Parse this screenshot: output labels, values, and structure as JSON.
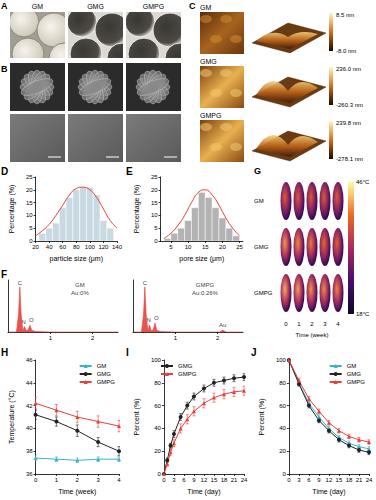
{
  "chart_data": [
    {
      "title": "D",
      "type": "histogram",
      "x_label": "particle size (μm)",
      "y_label": "Percentage (%)",
      "bins": [
        25,
        35,
        45,
        55,
        65,
        75,
        85,
        95,
        105,
        115,
        125,
        135
      ],
      "counts": [
        3,
        5,
        7,
        13,
        17,
        20,
        21,
        21,
        18,
        8,
        5
      ],
      "color": "#c9d9e2",
      "fit": {
        "x": [
          20,
          30,
          40,
          50,
          60,
          70,
          80,
          90,
          100,
          110,
          120,
          130,
          140
        ],
        "values": [
          2,
          4,
          6.5,
          10,
          14,
          18,
          20.5,
          21,
          20,
          17,
          12.5,
          8,
          5
        ],
        "color": "#e8403a"
      },
      "xlim": [
        20,
        140
      ],
      "xticks": [
        20,
        40,
        60,
        80,
        100,
        120,
        140
      ],
      "ylim": [
        0,
        25
      ],
      "yticks": [
        0,
        5,
        10,
        15,
        20,
        25
      ]
    },
    {
      "title": "E",
      "type": "histogram",
      "x_label": "pore size (μm)",
      "y_label": "Percentage (%)",
      "bins": [
        3,
        5,
        7,
        9,
        11,
        13,
        15,
        17,
        19,
        21,
        23,
        25
      ],
      "counts": [
        1,
        3,
        5,
        8,
        13,
        19,
        17,
        13,
        9,
        5,
        2
      ],
      "color": "#b3b3b3",
      "fit": {
        "x": [
          3,
          5,
          7,
          9,
          11,
          13,
          15,
          17,
          19,
          21,
          23,
          25
        ],
        "values": [
          1,
          3,
          6,
          10,
          15,
          19,
          20,
          18,
          14,
          9,
          5,
          2
        ],
        "color": "#e8403a"
      },
      "xlim": [
        2,
        26
      ],
      "xticks": [
        5,
        10,
        15,
        20,
        25
      ],
      "ylim": [
        0,
        25
      ],
      "yticks": [
        0,
        5,
        10,
        15,
        20,
        25
      ]
    },
    {
      "title": "F",
      "type": "spectrum",
      "tick_labels": "x",
      "color": "#e8403a",
      "x": [
        0,
        0.2,
        0.25,
        0.28,
        0.31,
        0.35,
        0.39,
        0.43,
        0.48,
        0.52,
        0.56,
        0.65,
        1,
        1.5,
        2,
        2.6
      ],
      "values": [
        0,
        0,
        40,
        100,
        40,
        3,
        12,
        3,
        5,
        15,
        4,
        1,
        0,
        0,
        0,
        0
      ],
      "xlim": [
        0,
        2.6
      ],
      "xticks": [
        1,
        2
      ],
      "ylim": [
        0,
        115
      ],
      "annotations": [
        {
          "text": "C",
          "x": 0.28,
          "y": 100
        },
        {
          "text": "N",
          "x": 0.37,
          "y": 14
        },
        {
          "text": "O",
          "x": 0.55,
          "y": 17
        },
        {
          "text": "GM",
          "x": 1.7,
          "y": 95
        },
        {
          "text": "Au:0%",
          "x": 1.7,
          "y": 78
        }
      ]
    },
    {
      "type": "spectrum",
      "tick_labels": "x",
      "color": "#e8403a",
      "x": [
        0,
        0.2,
        0.25,
        0.28,
        0.31,
        0.35,
        0.39,
        0.43,
        0.48,
        0.52,
        0.56,
        0.65,
        1,
        1.5,
        2.05,
        2.12,
        2.2,
        2.6
      ],
      "values": [
        0,
        0,
        40,
        100,
        40,
        3,
        15,
        3,
        5,
        20,
        4,
        1,
        0,
        0,
        0,
        4,
        0,
        0
      ],
      "xlim": [
        0,
        2.6
      ],
      "xticks": [
        1,
        2
      ],
      "ylim": [
        0,
        115
      ],
      "annotations": [
        {
          "text": "C",
          "x": 0.28,
          "y": 100
        },
        {
          "text": "N",
          "x": 0.37,
          "y": 17
        },
        {
          "text": "O",
          "x": 0.55,
          "y": 22
        },
        {
          "text": "Au",
          "x": 2.12,
          "y": 6
        },
        {
          "text": "GMPG",
          "x": 1.7,
          "y": 95
        },
        {
          "text": "Au:0.26%",
          "x": 1.7,
          "y": 78
        }
      ]
    },
    {
      "title": "H",
      "type": "line",
      "x_label": "Time (week)",
      "y_label": "Temperature (°C)",
      "legend": "upper right",
      "x": [
        0,
        1,
        2,
        3,
        4
      ],
      "xlim": [
        0,
        4
      ],
      "xticks": [
        0,
        1,
        2,
        3,
        4
      ],
      "ylim": [
        36,
        46
      ],
      "yticks": [
        36,
        38,
        40,
        42,
        44,
        46
      ],
      "series": [
        {
          "name": "GM",
          "color": "#3bb3c3",
          "marker": "triangle",
          "values": [
            37.4,
            37.3,
            37.2,
            37.3,
            37.3
          ],
          "errors": [
            0.2,
            0.2,
            0.2,
            0.2,
            0.2
          ]
        },
        {
          "name": "GMG",
          "color": "#222222",
          "marker": "circle",
          "values": [
            41.2,
            40.6,
            39.8,
            38.8,
            38.0
          ],
          "errors": [
            0.4,
            0.4,
            0.5,
            0.4,
            0.4
          ]
        },
        {
          "name": "GMPG",
          "color": "#e8403a",
          "marker": "triangle",
          "values": [
            42.2,
            41.6,
            41.0,
            40.6,
            40.2
          ],
          "errors": [
            0.5,
            0.5,
            0.5,
            0.5,
            0.5
          ]
        }
      ]
    },
    {
      "title": "I",
      "type": "line",
      "x_label": "Time (day)",
      "y_label": "Percent (%)",
      "legend": "upper left",
      "x": [
        0,
        1,
        2,
        3,
        5,
        7,
        9,
        12,
        15,
        18,
        21,
        24
      ],
      "xlim": [
        0,
        24
      ],
      "xticks": [
        0,
        3,
        6,
        9,
        12,
        15,
        18,
        21,
        24
      ],
      "ylim": [
        0,
        100
      ],
      "yticks": [
        0,
        20,
        40,
        60,
        80,
        100
      ],
      "series": [
        {
          "name": "GMG",
          "color": "#222222",
          "marker": "circle",
          "values": [
            0,
            12,
            25,
            35,
            50,
            60,
            68,
            75,
            80,
            82,
            84,
            85
          ],
          "errors": [
            0,
            2,
            2,
            3,
            3,
            3,
            3,
            3,
            3,
            3,
            3,
            3
          ]
        },
        {
          "name": "GMPG",
          "color": "#e8403a",
          "marker": "triangle",
          "values": [
            0,
            9,
            19,
            27,
            40,
            48,
            55,
            62,
            67,
            70,
            72,
            73
          ],
          "errors": [
            0,
            2,
            3,
            3,
            4,
            4,
            4,
            4,
            4,
            4,
            4,
            4
          ]
        }
      ]
    },
    {
      "title": "J",
      "type": "line",
      "x_label": "Time (day)",
      "y_label": "Percent (%)",
      "legend": "upper right",
      "x": [
        0,
        3,
        6,
        9,
        12,
        15,
        18,
        21,
        24
      ],
      "xlim": [
        0,
        24
      ],
      "xticks": [
        0,
        3,
        6,
        9,
        12,
        15,
        18,
        21,
        24
      ],
      "ylim": [
        0,
        100
      ],
      "yticks": [
        0,
        20,
        40,
        60,
        80,
        100
      ],
      "series": [
        {
          "name": "GM",
          "color": "#3bb3c3",
          "marker": "triangle",
          "values": [
            100,
            80,
            62,
            50,
            40,
            32,
            27,
            24,
            22
          ],
          "errors": [
            2,
            2,
            2,
            2,
            2,
            2,
            2,
            2,
            2
          ]
        },
        {
          "name": "GMG",
          "color": "#222222",
          "marker": "circle",
          "values": [
            100,
            79,
            60,
            47,
            38,
            30,
            25,
            21,
            19
          ],
          "errors": [
            2,
            2,
            2,
            2,
            2,
            2,
            2,
            2,
            2
          ]
        },
        {
          "name": "GMPG",
          "color": "#e8403a",
          "marker": "triangle",
          "values": [
            100,
            82,
            66,
            55,
            45,
            38,
            33,
            30,
            28
          ],
          "errors": [
            2,
            2,
            2,
            2,
            2,
            2,
            2,
            2,
            2
          ]
        }
      ]
    }
  ],
  "panels": {
    "A": {
      "letter": "A",
      "labels": [
        "GM",
        "GMG",
        "GMPG"
      ]
    },
    "B": {
      "letter": "B"
    },
    "C": {
      "letter": "C",
      "labels": [
        "GM",
        "GMG",
        "GMPG"
      ],
      "scales": [
        {
          "max": "8.5 nm",
          "min": "-8.0 nm"
        },
        {
          "max": "236.0 nm",
          "min": "-260.3 nm"
        },
        {
          "max": "239.8 nm",
          "min": "-278.1 nm"
        }
      ]
    },
    "G": {
      "letter": "G",
      "labels": [
        "GM",
        "GMG",
        "GMPG"
      ],
      "x_label": "Time (week)",
      "columns": [
        0,
        1,
        2,
        3,
        4
      ],
      "cells": [
        [
          37.4,
          37.3,
          37.2,
          37.3,
          37.3
        ],
        [
          41.2,
          40.6,
          39.8,
          38.8,
          38.0
        ],
        [
          42.2,
          41.6,
          41.0,
          40.6,
          40.2
        ]
      ],
      "colorbar": {
        "range": [
          18,
          46
        ],
        "ticks": [
          {
            "value": 46,
            "label": "46°C"
          },
          {
            "value": 18,
            "label": "18°C"
          }
        ]
      }
    }
  }
}
